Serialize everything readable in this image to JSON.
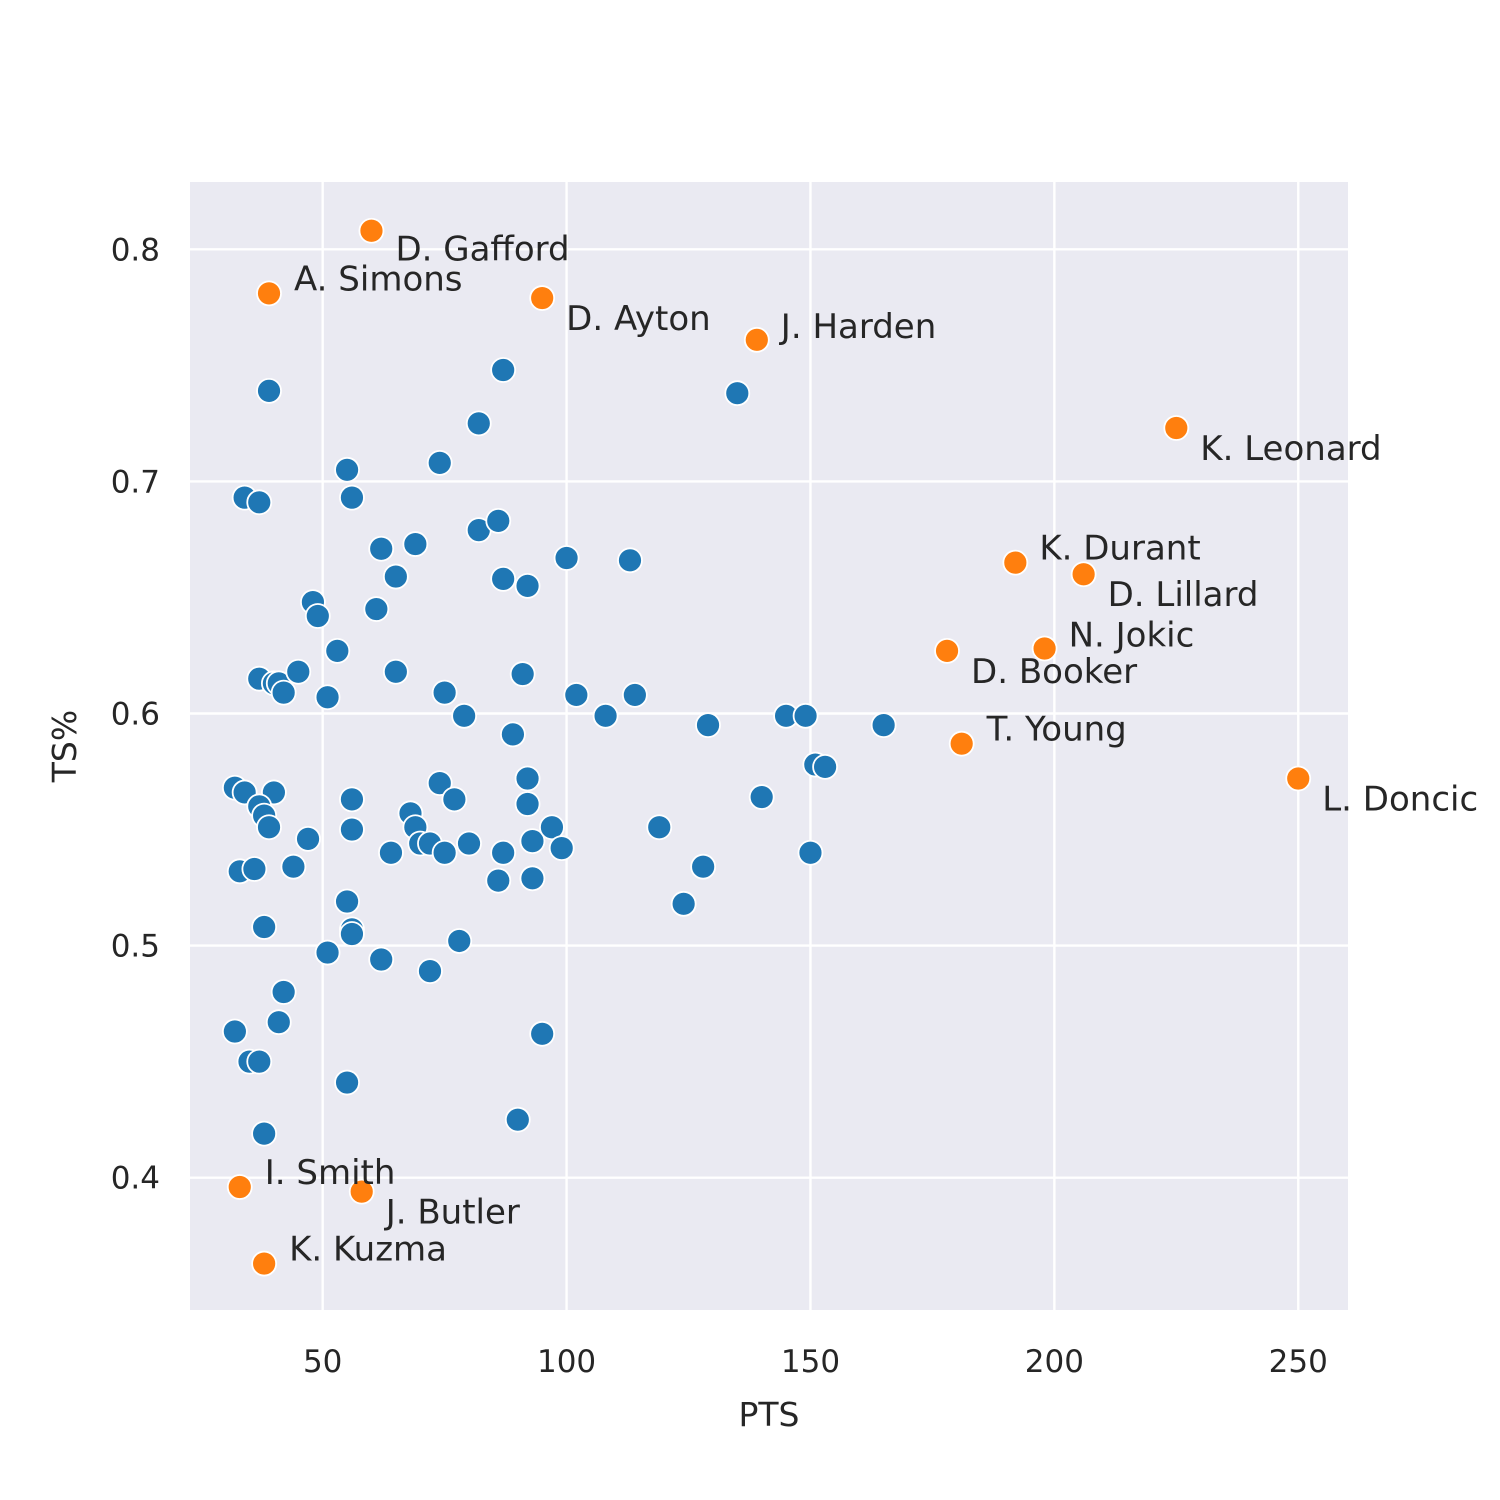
{
  "chart_data": {
    "type": "scatter",
    "title": "",
    "xlabel": "PTS",
    "ylabel": "TS%",
    "xlim": [
      22.8,
      260.2
    ],
    "ylim": [
      0.343,
      0.829
    ],
    "xticks": [
      {
        "value": 50,
        "label": "50"
      },
      {
        "value": 100,
        "label": "100"
      },
      {
        "value": 150,
        "label": "150"
      },
      {
        "value": 200,
        "label": "200"
      },
      {
        "value": 250,
        "label": "250"
      }
    ],
    "yticks": [
      {
        "value": 0.4,
        "label": "0.4"
      },
      {
        "value": 0.5,
        "label": "0.5"
      },
      {
        "value": 0.6,
        "label": "0.6"
      },
      {
        "value": 0.7,
        "label": "0.7"
      },
      {
        "value": 0.8,
        "label": "0.8"
      }
    ],
    "grid": true,
    "background": "#eaeaf2",
    "colors": {
      "default": "#1f77b4",
      "highlight": "#ff7f0e"
    },
    "series": [
      {
        "points": [
          [
            39,
            0.739
          ],
          [
            34,
            0.693
          ],
          [
            37,
            0.691
          ],
          [
            55,
            0.705
          ],
          [
            56,
            0.693
          ],
          [
            74,
            0.708
          ],
          [
            82,
            0.725
          ],
          [
            87,
            0.748
          ],
          [
            135,
            0.738
          ],
          [
            82,
            0.679
          ],
          [
            86,
            0.683
          ],
          [
            69,
            0.673
          ],
          [
            62,
            0.671
          ],
          [
            65,
            0.659
          ],
          [
            87,
            0.658
          ],
          [
            92,
            0.655
          ],
          [
            100,
            0.667
          ],
          [
            113,
            0.666
          ],
          [
            48,
            0.648
          ],
          [
            49,
            0.642
          ],
          [
            61,
            0.645
          ],
          [
            53,
            0.627
          ],
          [
            37,
            0.615
          ],
          [
            40,
            0.613
          ],
          [
            41,
            0.613
          ],
          [
            42,
            0.609
          ],
          [
            45,
            0.618
          ],
          [
            51,
            0.607
          ],
          [
            65,
            0.618
          ],
          [
            75,
            0.609
          ],
          [
            91,
            0.617
          ],
          [
            102,
            0.608
          ],
          [
            114,
            0.608
          ],
          [
            79,
            0.599
          ],
          [
            89,
            0.591
          ],
          [
            108,
            0.599
          ],
          [
            129,
            0.595
          ],
          [
            145,
            0.599
          ],
          [
            149,
            0.599
          ],
          [
            165,
            0.595
          ],
          [
            151,
            0.578
          ],
          [
            153,
            0.577
          ],
          [
            32,
            0.568
          ],
          [
            34,
            0.566
          ],
          [
            40,
            0.566
          ],
          [
            37,
            0.56
          ],
          [
            38,
            0.556
          ],
          [
            39,
            0.551
          ],
          [
            47,
            0.546
          ],
          [
            56,
            0.563
          ],
          [
            56,
            0.55
          ],
          [
            64,
            0.54
          ],
          [
            68,
            0.557
          ],
          [
            69,
            0.551
          ],
          [
            70,
            0.544
          ],
          [
            72,
            0.544
          ],
          [
            74,
            0.57
          ],
          [
            75,
            0.54
          ],
          [
            77,
            0.563
          ],
          [
            80,
            0.544
          ],
          [
            87,
            0.54
          ],
          [
            92,
            0.572
          ],
          [
            92,
            0.561
          ],
          [
            93,
            0.545
          ],
          [
            97,
            0.551
          ],
          [
            99,
            0.542
          ],
          [
            119,
            0.551
          ],
          [
            140,
            0.564
          ],
          [
            150,
            0.54
          ],
          [
            33,
            0.532
          ],
          [
            36,
            0.533
          ],
          [
            44,
            0.534
          ],
          [
            86,
            0.528
          ],
          [
            93,
            0.529
          ],
          [
            128,
            0.534
          ],
          [
            124,
            0.518
          ],
          [
            55,
            0.519
          ],
          [
            56,
            0.507
          ],
          [
            56,
            0.505
          ],
          [
            38,
            0.508
          ],
          [
            51,
            0.497
          ],
          [
            62,
            0.494
          ],
          [
            72,
            0.489
          ],
          [
            78,
            0.502
          ],
          [
            42,
            0.48
          ],
          [
            41,
            0.467
          ],
          [
            32,
            0.463
          ],
          [
            35,
            0.45
          ],
          [
            37,
            0.45
          ],
          [
            95,
            0.462
          ],
          [
            55,
            0.441
          ],
          [
            90,
            0.425
          ],
          [
            38,
            0.419
          ]
        ]
      },
      {
        "points": [
          {
            "x": 60,
            "y": 0.808,
            "label": "D. Gafford"
          },
          {
            "x": 39,
            "y": 0.781,
            "label": "A. Simons"
          },
          {
            "x": 95,
            "y": 0.779,
            "label": "D. Ayton"
          },
          {
            "x": 139,
            "y": 0.761,
            "label": "J. Harden"
          },
          {
            "x": 225,
            "y": 0.723,
            "label": "K. Leonard"
          },
          {
            "x": 192,
            "y": 0.665,
            "label": "K. Durant"
          },
          {
            "x": 206,
            "y": 0.66,
            "label": "D. Lillard"
          },
          {
            "x": 198,
            "y": 0.628,
            "label": "N. Jokic"
          },
          {
            "x": 178,
            "y": 0.627,
            "label": "D. Booker"
          },
          {
            "x": 181,
            "y": 0.587,
            "label": "T. Young"
          },
          {
            "x": 250,
            "y": 0.572,
            "label": "L. Doncic"
          },
          {
            "x": 33,
            "y": 0.396,
            "label": "I. Smith"
          },
          {
            "x": 58,
            "y": 0.394,
            "label": "J. Butler"
          },
          {
            "x": 38,
            "y": 0.363,
            "label": "K. Kuzma"
          }
        ]
      }
    ]
  }
}
